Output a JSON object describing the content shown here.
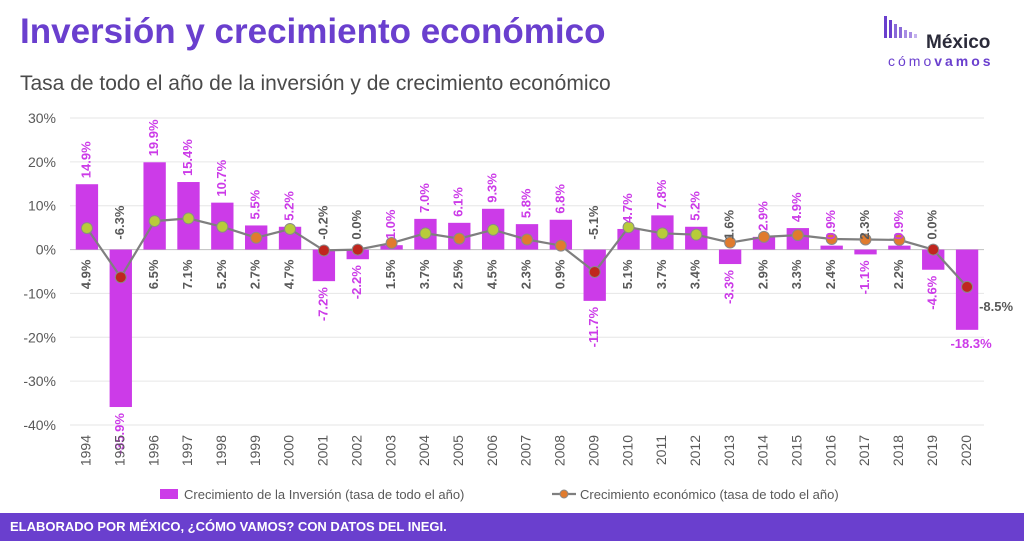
{
  "header": {
    "title": "Inversión y crecimiento económico",
    "subtitle": "Tasa de todo el año de la inversión y de crecimiento económico"
  },
  "logo": {
    "word": "México",
    "tag_prefix": "cómo",
    "tag_suffix": "vamos"
  },
  "footer": {
    "text": "ELABORADO POR MÉXICO, ¿CÓMO VAMOS? CON DATOS DEL INEGI."
  },
  "colors": {
    "title": "#6a3fce",
    "bar": "#cc3be8",
    "bar_label": "#cc3be8",
    "line": "#7f7f7f",
    "line_label": "#595959",
    "footer": "#6a3fce",
    "marker_green": "#b8cc3a",
    "marker_orange": "#e07b2e",
    "marker_red": "#c0261e"
  },
  "chart_data": {
    "type": "bar",
    "categories": [
      "1994",
      "1995",
      "1996",
      "1997",
      "1998",
      "1999",
      "2000",
      "2001",
      "2002",
      "2003",
      "2004",
      "2005",
      "2006",
      "2007",
      "2008",
      "2009",
      "2010",
      "2011",
      "2012",
      "2013",
      "2014",
      "2015",
      "2016",
      "2017",
      "2018",
      "2019",
      "2020"
    ],
    "series": [
      {
        "name": "Crecimiento de la Inversión (tasa de todo el año)",
        "kind": "bar",
        "values": [
          14.9,
          -35.9,
          19.9,
          15.4,
          10.7,
          5.5,
          5.2,
          -7.2,
          -2.2,
          1.0,
          7.0,
          6.1,
          9.3,
          5.8,
          6.8,
          -11.7,
          4.7,
          7.8,
          5.2,
          -3.3,
          2.9,
          4.9,
          0.9,
          -1.1,
          0.9,
          -4.6,
          -18.3
        ],
        "labels": [
          "14.9%",
          "-35.9%",
          "19.9%",
          "15.4%",
          "10.7%",
          "5.5%",
          "5.2%",
          "-7.2%",
          "-2.2%",
          "1.0%",
          "7.0%",
          "6.1%",
          "9.3%",
          "5.8%",
          "6.8%",
          "-11.7%",
          "4.7%",
          "7.8%",
          "5.2%",
          "-3.3%",
          "2.9%",
          "4.9%",
          "0.9%",
          "-1.1%",
          "0.9%",
          "-4.6%",
          "-18.3%"
        ]
      },
      {
        "name": "Crecimiento económico (tasa de todo el año)",
        "kind": "line",
        "values": [
          4.9,
          -6.3,
          6.5,
          7.1,
          5.2,
          2.7,
          4.7,
          -0.2,
          0.0,
          1.5,
          3.7,
          2.5,
          4.5,
          2.3,
          0.9,
          -5.1,
          5.1,
          3.7,
          3.4,
          1.6,
          2.9,
          3.3,
          2.4,
          2.3,
          2.2,
          0.0,
          -8.5
        ],
        "labels": [
          "4.9%",
          "-6.3%",
          "6.5%",
          "7.1%",
          "5.2%",
          "2.7%",
          "4.7%",
          "-0.2%",
          "0.0%",
          "1.5%",
          "3.7%",
          "2.5%",
          "4.5%",
          "2.3%",
          "0.9%",
          "-5.1%",
          "5.1%",
          "3.7%",
          "3.4%",
          "1.6%",
          "2.9%",
          "3.3%",
          "2.4%",
          "2.3%",
          "2.2%",
          "0.0%",
          "-8.5%"
        ],
        "marker_colors": [
          "green",
          "red",
          "green",
          "green",
          "green",
          "orange",
          "green",
          "red",
          "red",
          "orange",
          "green",
          "orange",
          "green",
          "orange",
          "orange",
          "red",
          "green",
          "green",
          "green",
          "orange",
          "orange",
          "orange",
          "orange",
          "orange",
          "orange",
          "red",
          "red"
        ]
      }
    ],
    "ylim": [
      -40,
      30
    ],
    "yticks": [
      -40,
      -30,
      -20,
      -10,
      0,
      10,
      20,
      30
    ],
    "ytick_labels": [
      "-40%",
      "-30%",
      "-20%",
      "-10%",
      "0%",
      "10%",
      "20%",
      "30%"
    ],
    "grid": true,
    "legend_position": "bottom"
  }
}
